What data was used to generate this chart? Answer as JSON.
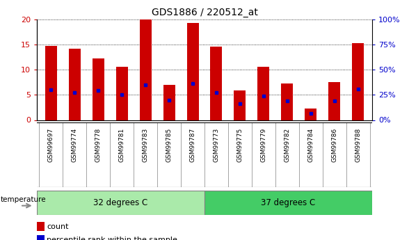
{
  "title": "GDS1886 / 220512_at",
  "samples": [
    "GSM99697",
    "GSM99774",
    "GSM99778",
    "GSM99781",
    "GSM99783",
    "GSM99785",
    "GSM99787",
    "GSM99773",
    "GSM99775",
    "GSM99779",
    "GSM99782",
    "GSM99784",
    "GSM99786",
    "GSM99788"
  ],
  "count_values": [
    14.7,
    14.2,
    12.2,
    10.5,
    20.0,
    7.0,
    19.2,
    14.5,
    5.8,
    10.6,
    7.2,
    2.3,
    7.5,
    15.3
  ],
  "percentile_values": [
    6.0,
    5.5,
    5.8,
    5.0,
    7.0,
    4.0,
    7.2,
    5.5,
    3.2,
    4.8,
    3.8,
    1.3,
    3.8,
    6.2
  ],
  "group1_label": "32 degrees C",
  "group2_label": "37 degrees C",
  "group1_count": 7,
  "group2_count": 7,
  "group1_color": "#aaeaaa",
  "group2_color": "#44cc66",
  "bar_color": "#cc0000",
  "percentile_color": "#0000cc",
  "ylim_left": [
    0,
    20
  ],
  "ylim_right": [
    0,
    100
  ],
  "yticks_left": [
    0,
    5,
    10,
    15,
    20
  ],
  "yticks_right": [
    0,
    25,
    50,
    75,
    100
  ],
  "ytick_labels_right": [
    "0%",
    "25%",
    "50%",
    "75%",
    "100%"
  ],
  "bar_width": 0.5,
  "tick_color_left": "#cc0000",
  "tick_color_right": "#0000cc",
  "bg_color": "#d8d8d8"
}
